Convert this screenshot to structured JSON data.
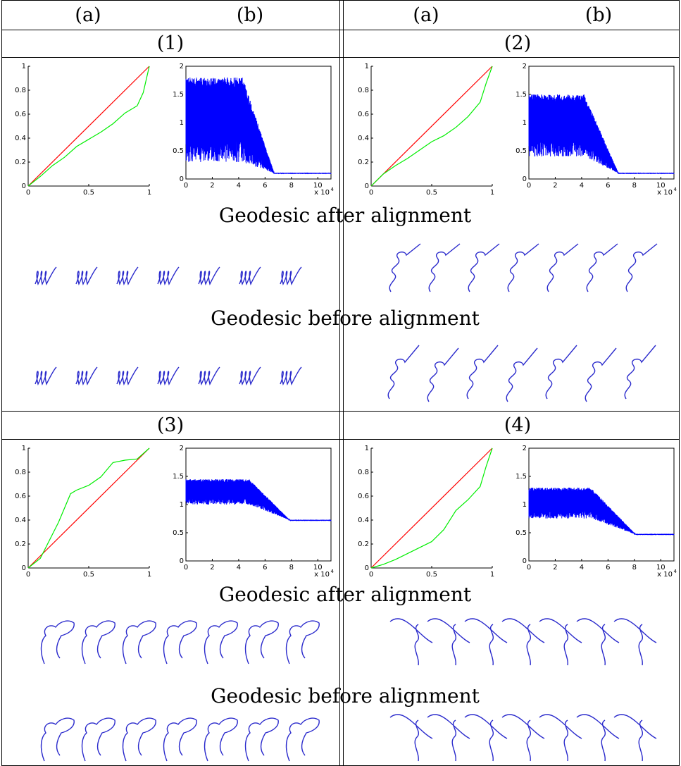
{
  "header": {
    "col_a": "(a)",
    "col_b": "(b)"
  },
  "panels": [
    {
      "label": "(1)",
      "after_label": "Geodesic after alignment",
      "before_label": "Geodesic before alignment"
    },
    {
      "label": "(2)",
      "after_label": "Geodesic after alignment",
      "before_label": "Geodesic before alignment"
    },
    {
      "label": "(3)",
      "after_label": "Geodesic after alignment",
      "before_label": "Geodesic before alignment"
    },
    {
      "label": "(4)",
      "after_label": "Geodesic after alignment",
      "before_label": "Geodesic before alignment"
    }
  ],
  "colors": {
    "identity": "#ff0000",
    "warp": "#00ee00",
    "energy": "#0000ff",
    "curve": "#2a2acc"
  },
  "chart_data": [
    {
      "panel": "1a",
      "type": "line",
      "xlim": [
        0,
        1
      ],
      "ylim": [
        0,
        1
      ],
      "xticks": [
        "0",
        "0.5",
        "1"
      ],
      "yticks": [
        "0",
        "0.2",
        "0.4",
        "0.6",
        "0.8",
        "1"
      ],
      "series": [
        {
          "x": [
            0,
            1
          ],
          "y": [
            0,
            1
          ]
        },
        {
          "x": [
            0,
            0.1,
            0.2,
            0.3,
            0.4,
            0.5,
            0.6,
            0.7,
            0.8,
            0.9,
            0.95,
            1
          ],
          "y": [
            0,
            0.08,
            0.17,
            0.24,
            0.33,
            0.39,
            0.45,
            0.52,
            0.61,
            0.67,
            0.78,
            1
          ]
        }
      ]
    },
    {
      "panel": "1b",
      "type": "line",
      "xlim": [
        0,
        11
      ],
      "ylim": [
        0,
        2
      ],
      "x_multiplier": "x 10^4",
      "xticks": [
        "0",
        "2",
        "4",
        "6",
        "8",
        "10"
      ],
      "yticks": [
        "0",
        "0.5",
        "1",
        "1.5",
        "2"
      ],
      "start": 1.8,
      "plateau": 1.8,
      "fall": [
        4.3,
        6.7
      ],
      "final": 0.1,
      "low": 0.3
    },
    {
      "panel": "2a",
      "type": "line",
      "xlim": [
        0,
        1
      ],
      "ylim": [
        0,
        1
      ],
      "xticks": [
        "0",
        "0.5",
        "1"
      ],
      "yticks": [
        "0",
        "0.2",
        "0.4",
        "0.6",
        "0.8",
        "1"
      ],
      "series": [
        {
          "x": [
            0,
            1
          ],
          "y": [
            0,
            1
          ]
        },
        {
          "x": [
            0,
            0.1,
            0.2,
            0.3,
            0.4,
            0.5,
            0.6,
            0.7,
            0.8,
            0.9,
            0.95,
            1
          ],
          "y": [
            0,
            0.1,
            0.17,
            0.23,
            0.3,
            0.37,
            0.42,
            0.49,
            0.58,
            0.7,
            0.86,
            1
          ]
        }
      ]
    },
    {
      "panel": "2b",
      "type": "line",
      "xlim": [
        0,
        11
      ],
      "ylim": [
        0,
        2
      ],
      "x_multiplier": "x 10^4",
      "xticks": [
        "0",
        "2",
        "4",
        "6",
        "8",
        "10"
      ],
      "yticks": [
        "0",
        "0.5",
        "1",
        "1.5",
        "2"
      ],
      "start": 1.5,
      "plateau": 1.5,
      "fall": [
        4.2,
        6.8
      ],
      "final": 0.1,
      "low": 0.4
    },
    {
      "panel": "3a",
      "type": "line",
      "xlim": [
        0,
        1
      ],
      "ylim": [
        0,
        1
      ],
      "xticks": [
        "0",
        "0.5",
        "1"
      ],
      "yticks": [
        "0",
        "0.2",
        "0.4",
        "0.6",
        "0.8",
        "1"
      ],
      "series": [
        {
          "x": [
            0,
            1
          ],
          "y": [
            0,
            1
          ]
        },
        {
          "x": [
            0,
            0.1,
            0.2,
            0.25,
            0.3,
            0.35,
            0.4,
            0.5,
            0.6,
            0.7,
            0.8,
            0.9,
            1
          ],
          "y": [
            0,
            0.08,
            0.28,
            0.38,
            0.5,
            0.62,
            0.65,
            0.69,
            0.76,
            0.88,
            0.9,
            0.91,
            1
          ]
        }
      ]
    },
    {
      "panel": "3b",
      "type": "line",
      "xlim": [
        0,
        11
      ],
      "ylim": [
        0,
        2
      ],
      "x_multiplier": "x 10^4",
      "xticks": [
        "0",
        "2",
        "4",
        "6",
        "8",
        "10"
      ],
      "yticks": [
        "0",
        "0.5",
        "1",
        "1.5",
        "2"
      ],
      "start": 1.55,
      "plateau": 1.45,
      "fall": [
        4.8,
        7.9
      ],
      "final": 0.72,
      "low": 1.0
    },
    {
      "panel": "4a",
      "type": "line",
      "xlim": [
        0,
        1
      ],
      "ylim": [
        0,
        1
      ],
      "xticks": [
        "0",
        "0.5",
        "1"
      ],
      "yticks": [
        "0",
        "0.2",
        "0.4",
        "0.6",
        "0.8",
        "1"
      ],
      "series": [
        {
          "x": [
            0,
            1
          ],
          "y": [
            0,
            1
          ]
        },
        {
          "x": [
            0,
            0.1,
            0.2,
            0.3,
            0.4,
            0.5,
            0.6,
            0.7,
            0.8,
            0.9,
            0.95,
            1
          ],
          "y": [
            0,
            0.03,
            0.07,
            0.12,
            0.17,
            0.22,
            0.32,
            0.48,
            0.57,
            0.68,
            0.85,
            1
          ]
        }
      ]
    },
    {
      "panel": "4b",
      "type": "line",
      "xlim": [
        0,
        11
      ],
      "ylim": [
        0,
        2
      ],
      "x_multiplier": "x 10^4",
      "xticks": [
        "0",
        "2",
        "4",
        "6",
        "8",
        "10"
      ],
      "yticks": [
        "0",
        "0.5",
        "1",
        "1.5",
        "2"
      ],
      "start": 1.3,
      "plateau": 1.3,
      "fall": [
        4.7,
        8.1
      ],
      "final": 0.47,
      "low": 0.75
    }
  ]
}
